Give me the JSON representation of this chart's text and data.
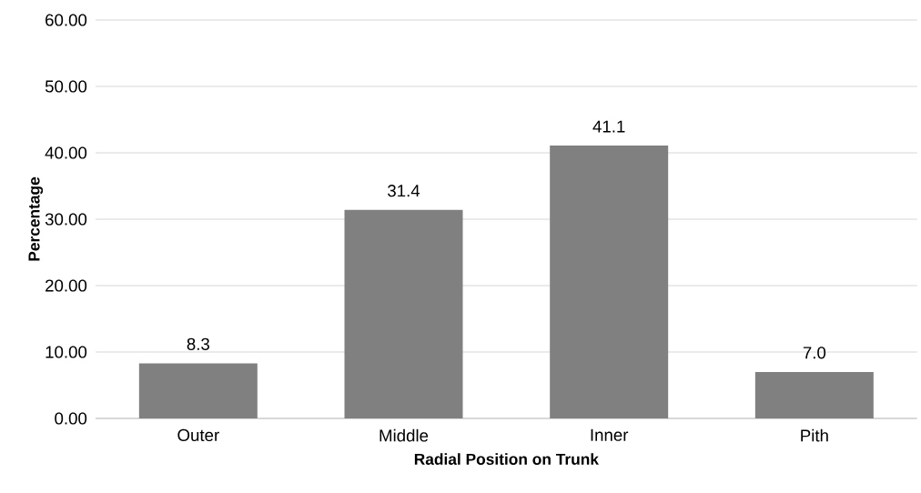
{
  "chart_data": {
    "type": "bar",
    "xlabel": "Radial Position on Trunk",
    "ylabel": "Percentage",
    "categories": [
      "Outer",
      "Middle",
      "Inner",
      "Pith"
    ],
    "values": [
      8.3,
      31.4,
      41.1,
      7.0
    ],
    "value_labels": [
      "8.3",
      "31.4",
      "41.1",
      "7.0"
    ],
    "color": "#808080",
    "ylim": [
      0,
      60
    ],
    "yticks": [
      {
        "value": 0,
        "label": "0.00"
      },
      {
        "value": 10,
        "label": "10.00"
      },
      {
        "value": 20,
        "label": "20.00"
      },
      {
        "value": 30,
        "label": "30.00"
      },
      {
        "value": 40,
        "label": "40.00"
      },
      {
        "value": 50,
        "label": "50.00"
      },
      {
        "value": 60,
        "label": "60.00"
      }
    ],
    "grid": "y"
  }
}
